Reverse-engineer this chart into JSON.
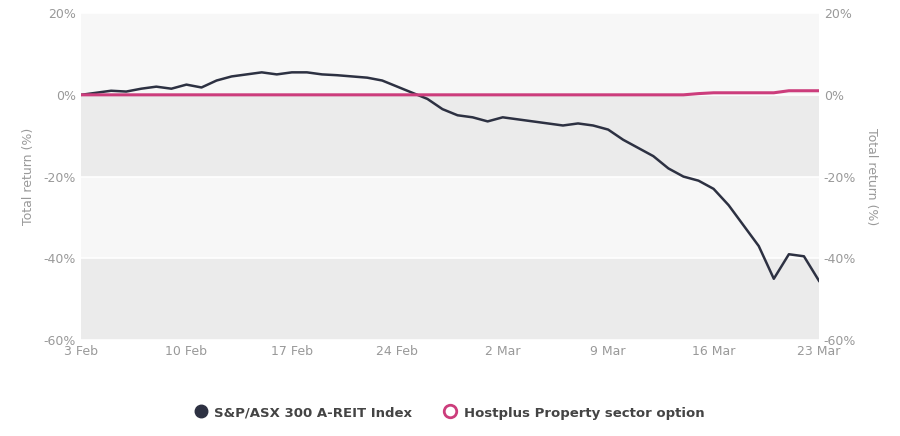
{
  "xlabel_ticks": [
    "3 Feb",
    "10 Feb",
    "17 Feb",
    "24 Feb",
    "2 Mar",
    "9 Mar",
    "16 Mar",
    "23 Mar"
  ],
  "ylabel": "Total return (%)",
  "ylim": [
    -60,
    20
  ],
  "yticks": [
    -60,
    -40,
    -20,
    0,
    20
  ],
  "background_color": "#ffffff",
  "band_colors": [
    "#ebebeb",
    "#f7f7f7"
  ],
  "grid_color": "#ffffff",
  "asx_color": "#2d3142",
  "hostplus_color": "#cc3d7c",
  "asx_label": "S&P/ASX 300 A-REIT Index",
  "hostplus_label": "Hostplus Property sector option",
  "asx_y": [
    0,
    0.5,
    1.0,
    0.8,
    1.5,
    2.0,
    1.5,
    2.5,
    1.8,
    3.5,
    4.5,
    5.0,
    5.5,
    5.0,
    5.5,
    5.5,
    5.0,
    4.8,
    4.5,
    4.2,
    3.5,
    2.0,
    0.5,
    -1.0,
    -3.5,
    -5.0,
    -5.5,
    -6.5,
    -5.5,
    -6.0,
    -6.5,
    -7.0,
    -7.5,
    -7.0,
    -7.5,
    -8.5,
    -11.0,
    -13.0,
    -15.0,
    -18.0,
    -20.0,
    -21.0,
    -23.0,
    -27.0,
    -32.0,
    -37.0,
    -45.0,
    -39.0,
    -39.5,
    -45.5
  ],
  "hostplus_y": [
    0,
    0,
    0,
    0,
    0,
    0,
    0,
    0,
    0,
    0,
    0,
    0,
    0,
    0,
    0,
    0,
    0,
    0,
    0,
    0,
    0,
    0,
    0,
    0,
    0,
    0,
    0,
    0,
    0,
    0,
    0,
    0,
    0,
    0,
    0,
    0,
    0,
    0,
    0,
    0,
    0,
    0.3,
    0.5,
    0.5,
    0.5,
    0.5,
    0.5,
    1.0,
    1.0,
    1.0
  ],
  "n_points": 50,
  "tick_positions": [
    0,
    7,
    14,
    21,
    28,
    35,
    42,
    49
  ]
}
